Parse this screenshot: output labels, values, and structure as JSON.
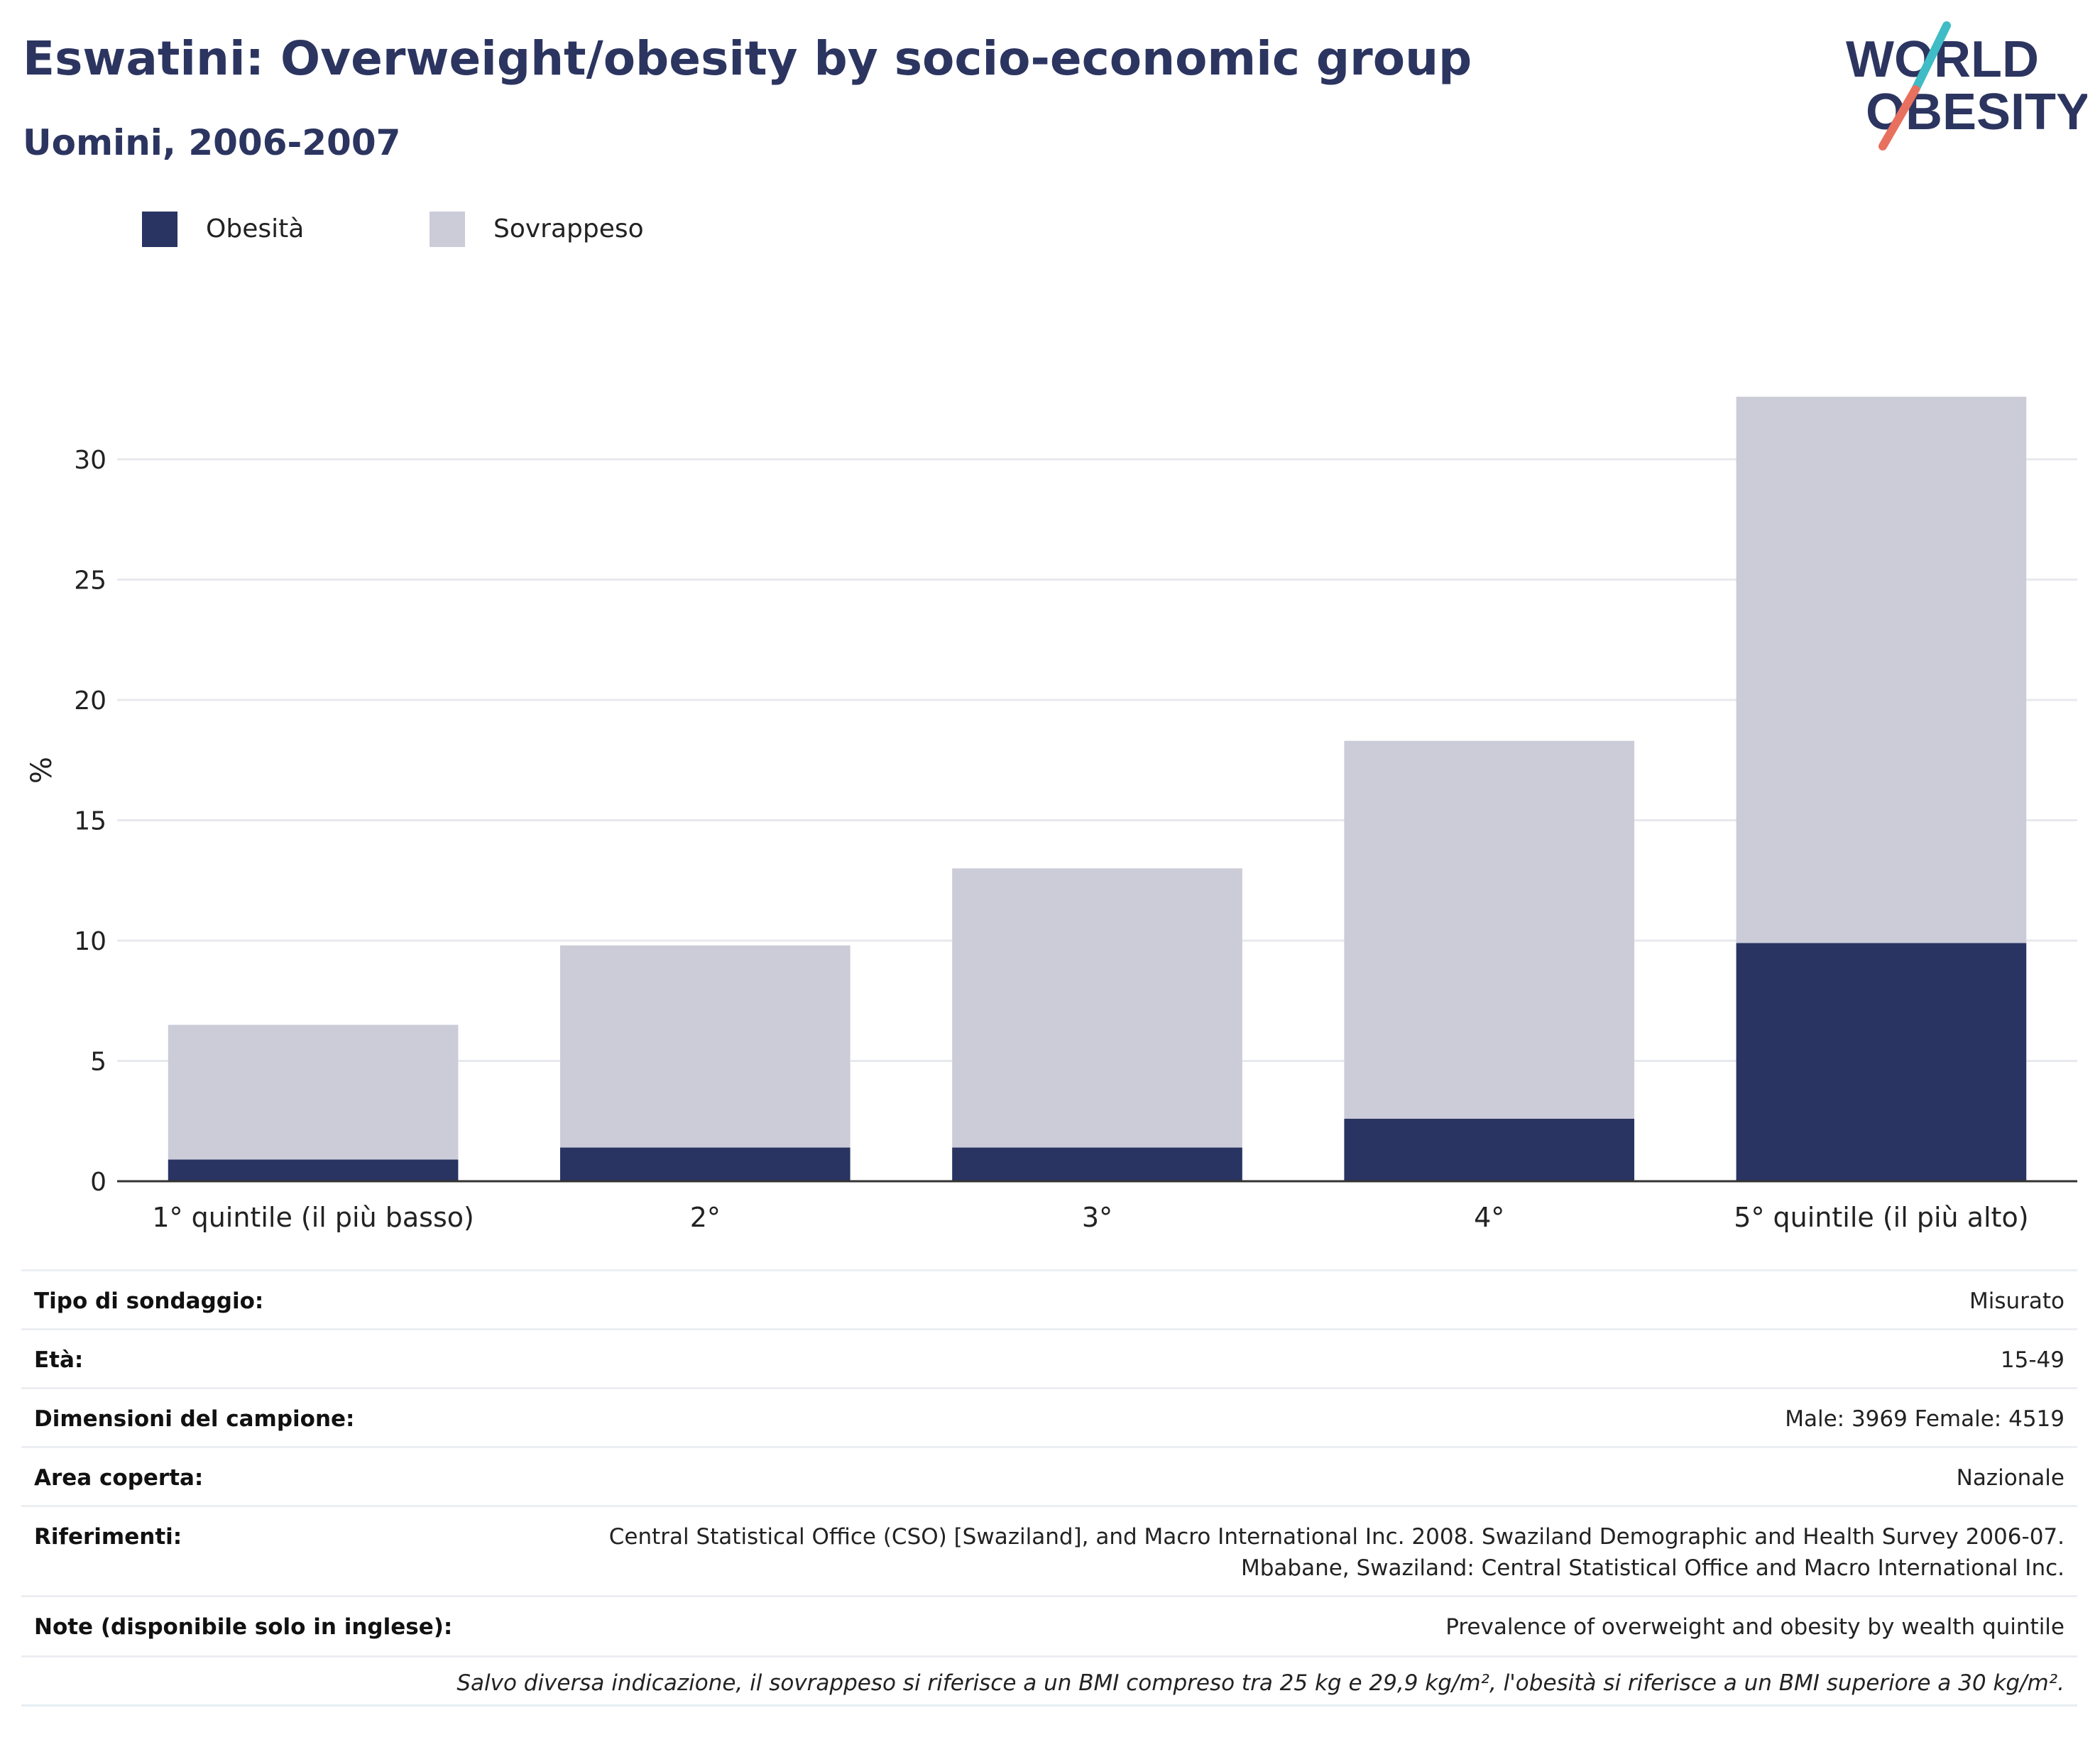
{
  "header": {
    "title": "Eswatini: Overweight/obesity by socio-economic group",
    "subtitle": "Uomini, 2006-2007"
  },
  "logo": {
    "line1": "WORLD",
    "line2": "OBESITY",
    "accent_teal": "#3fbcc5",
    "accent_coral": "#e8705e",
    "text_color": "#2c3560"
  },
  "colors": {
    "obesity": "#293462",
    "overweight": "#cbccd8",
    "grid": "#e8e9ee",
    "axis": "#333333"
  },
  "chart_data": {
    "type": "bar",
    "stacked": true,
    "categories": [
      "1° quintile (il più basso)",
      "2°",
      "3°",
      "4°",
      "5° quintile (il più alto)"
    ],
    "series": [
      {
        "name": "Obesità",
        "values": [
          0.9,
          1.4,
          1.4,
          2.6,
          9.9
        ]
      },
      {
        "name": "Sovrappeso",
        "values": [
          5.6,
          8.4,
          11.6,
          15.7,
          22.7
        ]
      }
    ],
    "ylabel": "%",
    "xlabel": "",
    "ylim": [
      0,
      33
    ],
    "yticks": [
      0,
      5,
      10,
      15,
      20,
      25,
      30
    ],
    "grid": true,
    "legend_position": "top-left"
  },
  "info": {
    "rows": [
      {
        "label": "Tipo di sondaggio:",
        "value": "Misurato"
      },
      {
        "label": "Età:",
        "value": "15-49"
      },
      {
        "label": "Dimensioni del campione:",
        "value": "Male: 3969 Female: 4519"
      },
      {
        "label": "Area coperta:",
        "value": "Nazionale"
      },
      {
        "label": "Riferimenti:",
        "value": "Central Statistical Office (CSO) [Swaziland], and Macro International Inc. 2008. Swaziland Demographic and Health Survey 2006-07.",
        "value2": "Mbabane, Swaziland: Central Statistical Office and Macro International Inc."
      },
      {
        "label": "Note (disponibile solo in inglese):",
        "value": "Prevalence of overweight and obesity by wealth quintile"
      }
    ],
    "footnote": "Salvo diversa indicazione, il sovrappeso si riferisce a un BMI compreso tra 25 kg e 29,9 kg/m², l'obesità si riferisce a un BMI superiore a 30 kg/m²."
  }
}
